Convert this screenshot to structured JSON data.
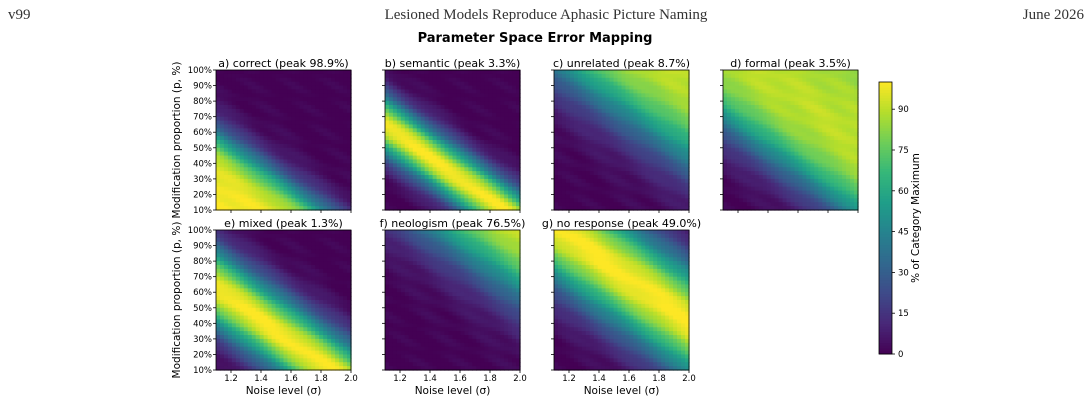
{
  "header": {
    "left": "v99",
    "center": "Lesioned Models Reproduce Aphasic Picture Naming",
    "right": "June 2026"
  },
  "chart_data": {
    "type": "heatmap",
    "title": "Parameter Space Error Mapping",
    "xlabel": "Noise level (σ)",
    "ylabel": "Modification proportion (p, %)",
    "xlim": [
      1.1,
      2.0
    ],
    "ylim": [
      10,
      100
    ],
    "x_ticks": [
      "1.2",
      "1.4",
      "1.6",
      "1.8",
      "2.0"
    ],
    "y_ticks": [
      "10%",
      "20%",
      "30%",
      "40%",
      "50%",
      "60%",
      "70%",
      "80%",
      "90%",
      "100%"
    ],
    "colormap": "viridis",
    "colorbar": {
      "label": "% of Category Maximum",
      "ticks": [
        "0",
        "15",
        "30",
        "45",
        "60",
        "75",
        "90"
      ],
      "range": [
        0,
        100
      ]
    },
    "panels": [
      {
        "title": "a) correct (peak 98.9%)",
        "category": "correct",
        "peak": 98.9,
        "show_x_ticks": false,
        "show_y_ticks": true,
        "show_xlabel": false,
        "show_ylabel": true
      },
      {
        "title": "b) semantic (peak 3.3%)",
        "category": "semantic",
        "peak": 3.3,
        "show_x_ticks": false,
        "show_y_ticks": false,
        "show_xlabel": false,
        "show_ylabel": false
      },
      {
        "title": "c) unrelated (peak 8.7%)",
        "category": "unrelated",
        "peak": 8.7,
        "show_x_ticks": false,
        "show_y_ticks": false,
        "show_xlabel": false,
        "show_ylabel": false
      },
      {
        "title": "d) formal (peak 3.5%)",
        "category": "formal",
        "peak": 3.5,
        "show_x_ticks": false,
        "show_y_ticks": false,
        "show_xlabel": false,
        "show_ylabel": false
      },
      {
        "title": "e) mixed (peak 1.3%)",
        "category": "mixed",
        "peak": 1.3,
        "show_x_ticks": true,
        "show_y_ticks": true,
        "show_xlabel": true,
        "show_ylabel": true
      },
      {
        "title": "f) neologism (peak 76.5%)",
        "category": "neologism",
        "peak": 76.5,
        "show_x_ticks": true,
        "show_y_ticks": false,
        "show_xlabel": true,
        "show_ylabel": false
      },
      {
        "title": "g) no response (peak 49.0%)",
        "category": "no_response",
        "peak": 49.0,
        "show_x_ticks": true,
        "show_y_ticks": false,
        "show_xlabel": true,
        "show_ylabel": false
      }
    ]
  }
}
